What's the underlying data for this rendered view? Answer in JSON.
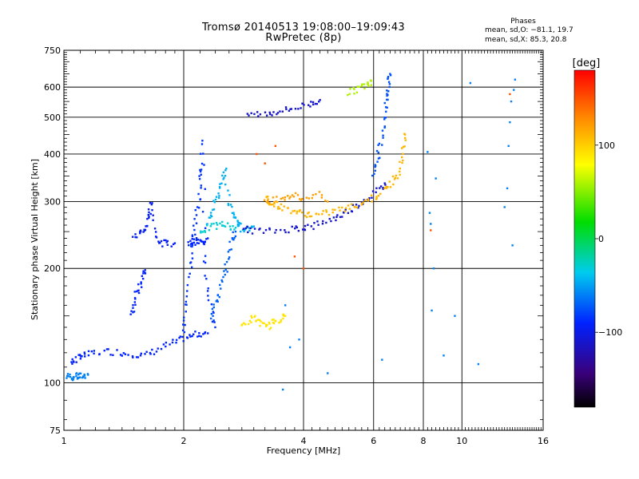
{
  "title": {
    "line1": "Tromsø 20140513 19:08:00–19:09:43",
    "line2": "RwPretec (8p)"
  },
  "phase_panel": {
    "title": "Phases",
    "stat_o": "mean, sd,O: −81.1, 19.7",
    "stat_x": "mean, sd,X: 85.3, 20.8"
  },
  "chart_data": {
    "type": "scatter",
    "xlabel": "Frequency [MHz]",
    "ylabel": "Stationary phase Virtual Height [km]",
    "xscale": "log",
    "yscale": "log",
    "xlim": [
      1,
      16
    ],
    "ylim": [
      75,
      750
    ],
    "xticks": [
      1,
      2,
      4,
      6,
      8,
      10,
      16
    ],
    "xtick_labels": [
      "1",
      "2",
      "4",
      "6",
      "8",
      "10",
      "16"
    ],
    "yticks": [
      75,
      100,
      200,
      300,
      400,
      500,
      600,
      750
    ],
    "ytick_labels": [
      "75",
      "100",
      "200",
      "300",
      "400",
      "500",
      "600",
      "750"
    ],
    "grid": true,
    "colorbar": {
      "label": "[deg]",
      "range": [
        -180,
        180
      ],
      "ticks": [
        100,
        0,
        -100
      ],
      "tick_labels": [
        "100",
        "0",
        "−100"
      ]
    },
    "series": [
      {
        "points": [
          [
            1.02,
            104
          ],
          [
            1.04,
            104
          ],
          [
            1.06,
            103.5
          ],
          [
            1.08,
            104
          ],
          [
            1.1,
            104
          ],
          [
            1.12,
            104.5
          ],
          [
            1.15,
            105
          ]
        ],
        "phase": -60
      },
      {
        "points": [
          [
            1.04,
            113
          ],
          [
            1.07,
            115
          ],
          [
            1.1,
            118
          ],
          [
            1.14,
            118
          ],
          [
            1.2,
            120
          ],
          [
            1.3,
            121
          ],
          [
            1.4,
            120
          ],
          [
            1.5,
            119
          ],
          [
            1.6,
            118
          ],
          [
            1.7,
            121
          ],
          [
            1.8,
            125
          ],
          [
            1.9,
            128
          ],
          [
            2.0,
            131
          ],
          [
            2.1,
            133
          ],
          [
            2.2,
            135
          ],
          [
            2.3,
            135
          ]
        ],
        "phase": -90
      },
      {
        "points": [
          [
            1.48,
            150
          ],
          [
            1.5,
            160
          ],
          [
            1.52,
            172
          ],
          [
            1.55,
            180
          ],
          [
            1.58,
            190
          ],
          [
            1.6,
            198
          ]
        ],
        "phase": -90
      },
      {
        "points": [
          [
            1.5,
            240
          ],
          [
            1.55,
            248
          ],
          [
            1.6,
            252
          ],
          [
            1.62,
            262
          ],
          [
            1.64,
            280
          ],
          [
            1.66,
            300
          ],
          [
            1.7,
            248
          ],
          [
            1.75,
            235
          ],
          [
            1.8,
            232
          ],
          [
            1.9,
            233
          ]
        ],
        "phase": -95
      },
      {
        "points": [
          [
            2.0,
            135
          ],
          [
            2.02,
            150
          ],
          [
            2.05,
            170
          ],
          [
            2.08,
            200
          ],
          [
            2.1,
            225
          ],
          [
            2.12,
            245
          ],
          [
            2.15,
            270
          ],
          [
            2.18,
            300
          ],
          [
            2.2,
            340
          ],
          [
            2.22,
            370
          ],
          [
            2.24,
            430
          ],
          [
            2.26,
            220
          ],
          [
            2.3,
            180
          ],
          [
            2.35,
            155
          ],
          [
            2.4,
            140
          ]
        ],
        "phase": -85
      },
      {
        "points": [
          [
            2.05,
            232
          ],
          [
            2.1,
            235
          ],
          [
            2.15,
            236
          ],
          [
            2.2,
            234
          ],
          [
            2.25,
            236
          ],
          [
            2.3,
            240
          ]
        ],
        "phase": -90
      },
      {
        "points": [
          [
            2.35,
            150
          ],
          [
            2.4,
            160
          ],
          [
            2.45,
            170
          ],
          [
            2.5,
            185
          ],
          [
            2.55,
            200
          ],
          [
            2.6,
            220
          ],
          [
            2.65,
            240
          ],
          [
            2.7,
            250
          ]
        ],
        "phase": -70
      },
      {
        "points": [
          [
            2.3,
            260
          ],
          [
            2.35,
            280
          ],
          [
            2.4,
            300
          ],
          [
            2.45,
            320
          ],
          [
            2.5,
            340
          ],
          [
            2.55,
            360
          ],
          [
            2.6,
            300
          ],
          [
            2.65,
            280
          ],
          [
            2.7,
            270
          ],
          [
            2.75,
            260
          ],
          [
            2.8,
            255
          ],
          [
            2.9,
            255
          ],
          [
            3.0,
            258
          ]
        ],
        "phase": -45
      },
      {
        "points": [
          [
            2.2,
            250
          ],
          [
            2.3,
            255
          ],
          [
            2.4,
            258
          ],
          [
            2.5,
            262
          ],
          [
            2.6,
            258
          ],
          [
            2.7,
            256
          ]
        ],
        "phase": -30
      },
      {
        "points": [
          [
            2.8,
            140
          ],
          [
            2.9,
            145
          ],
          [
            3.0,
            148
          ],
          [
            3.1,
            145
          ],
          [
            3.2,
            140
          ],
          [
            3.3,
            142
          ],
          [
            3.4,
            145
          ],
          [
            3.5,
            148
          ],
          [
            3.6,
            150
          ]
        ],
        "phase": 90
      },
      {
        "points": [
          [
            2.8,
            255
          ],
          [
            3.0,
            252
          ],
          [
            3.2,
            250
          ],
          [
            3.5,
            252
          ],
          [
            3.8,
            255
          ],
          [
            4.0,
            256
          ],
          [
            4.2,
            258
          ],
          [
            4.5,
            265
          ],
          [
            4.8,
            272
          ],
          [
            5.0,
            278
          ],
          [
            5.3,
            288
          ],
          [
            5.6,
            298
          ],
          [
            5.9,
            310
          ],
          [
            6.2,
            322
          ],
          [
            6.4,
            335
          ]
        ],
        "phase": -110
      },
      {
        "points": [
          [
            3.2,
            310
          ],
          [
            3.3,
            300
          ],
          [
            3.4,
            295
          ],
          [
            3.5,
            290
          ],
          [
            3.7,
            285
          ],
          [
            3.9,
            280
          ],
          [
            4.1,
            278
          ],
          [
            4.3,
            276
          ],
          [
            4.6,
            280
          ],
          [
            4.9,
            285
          ],
          [
            5.2,
            288
          ],
          [
            5.5,
            295
          ],
          [
            5.8,
            302
          ],
          [
            6.1,
            310
          ],
          [
            6.4,
            322
          ],
          [
            6.7,
            338
          ],
          [
            6.9,
            355
          ],
          [
            7.05,
            380
          ],
          [
            7.15,
            420
          ],
          [
            7.2,
            450
          ]
        ],
        "phase": 110
      },
      {
        "points": [
          [
            3.2,
            300
          ],
          [
            3.4,
            305
          ],
          [
            3.6,
            310
          ],
          [
            3.8,
            312
          ],
          [
            4.0,
            305
          ],
          [
            4.3,
            315
          ],
          [
            4.6,
            300
          ]
        ],
        "phase": 120
      },
      {
        "points": [
          [
            2.9,
            508
          ],
          [
            3.1,
            510
          ],
          [
            3.3,
            512
          ],
          [
            3.5,
            520
          ],
          [
            3.7,
            525
          ],
          [
            4.0,
            535
          ],
          [
            4.2,
            545
          ],
          [
            4.4,
            555
          ]
        ],
        "phase": -110
      },
      {
        "points": [
          [
            5.2,
            580
          ],
          [
            5.4,
            590
          ],
          [
            5.6,
            600
          ],
          [
            5.8,
            610
          ],
          [
            5.9,
            625
          ]
        ],
        "phase": 60
      },
      {
        "points": [
          [
            6.0,
            355
          ],
          [
            6.1,
            380
          ],
          [
            6.2,
            410
          ],
          [
            6.3,
            450
          ],
          [
            6.4,
            500
          ],
          [
            6.45,
            540
          ],
          [
            6.5,
            580
          ],
          [
            6.55,
            620
          ],
          [
            6.6,
            650
          ]
        ],
        "phase": -75
      },
      {
        "points": [
          [
            3.55,
            96
          ],
          [
            3.6,
            160
          ],
          [
            3.7,
            124
          ],
          [
            3.9,
            130
          ],
          [
            4.6,
            106
          ],
          [
            6.3,
            115
          ],
          [
            8.2,
            405
          ],
          [
            8.3,
            280
          ],
          [
            8.35,
            262
          ],
          [
            8.4,
            155
          ],
          [
            8.5,
            200
          ],
          [
            8.6,
            345
          ],
          [
            9.0,
            118
          ],
          [
            9.6,
            150
          ],
          [
            10.5,
            615
          ],
          [
            11.0,
            112
          ],
          [
            12.8,
            290
          ],
          [
            13.0,
            325
          ],
          [
            13.1,
            420
          ],
          [
            13.2,
            485
          ],
          [
            13.3,
            550
          ],
          [
            13.4,
            230
          ],
          [
            13.5,
            590
          ],
          [
            13.6,
            628
          ]
        ],
        "phase": -60
      },
      {
        "points": [
          [
            3.05,
            400
          ],
          [
            3.2,
            378
          ],
          [
            3.4,
            420
          ],
          [
            3.8,
            215
          ],
          [
            4.0,
            200
          ],
          [
            8.35,
            252
          ],
          [
            13.2,
            575
          ]
        ],
        "phase": 150
      }
    ]
  }
}
